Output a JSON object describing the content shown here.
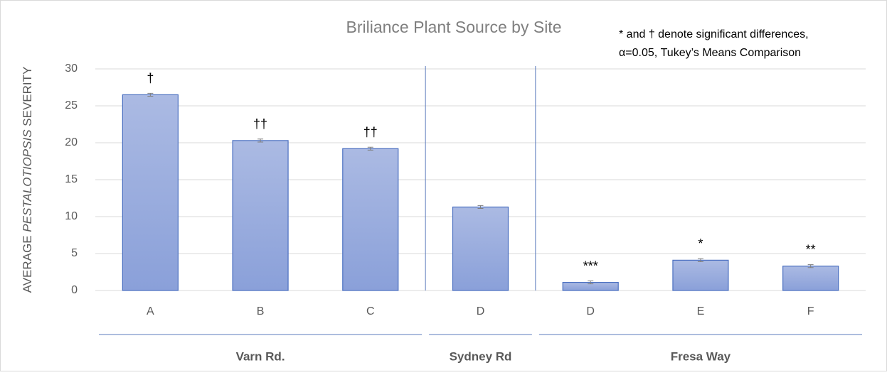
{
  "chart_data": {
    "type": "bar",
    "title": "Briliance Plant Source by Site",
    "note": [
      "* and † denote significant differences,",
      "α=0.05, Tukey’s Means Comparison"
    ],
    "ylabel": {
      "prefix": "AVERAGE",
      "italic": "PESTALOTIOPSIS",
      "suffix": "SEVERITY"
    },
    "groups": [
      {
        "name": "Varn Rd.",
        "categories": [
          "A",
          "B",
          "C"
        ]
      },
      {
        "name": "Sydney Rd",
        "categories": [
          "D"
        ]
      },
      {
        "name": "Fresa Way",
        "categories": [
          "D",
          "E",
          "F"
        ]
      }
    ],
    "values": [
      26.5,
      20.3,
      19.2,
      11.3,
      1.1,
      4.1,
      3.3
    ],
    "errors": [
      0.2,
      0.2,
      0.2,
      0.2,
      0.2,
      0.2,
      0.2
    ],
    "annotations": [
      "†",
      "††",
      "††",
      null,
      "***",
      "*",
      "**"
    ],
    "color": "#8fa5da",
    "ylim": [
      0,
      30
    ],
    "yticks": [
      0,
      5,
      10,
      15,
      20,
      25,
      30
    ],
    "grid": true
  }
}
